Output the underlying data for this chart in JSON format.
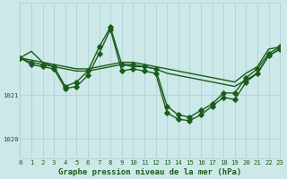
{
  "xlabel": "Graphe pression niveau de la mer (hPa)",
  "bg_color": "#cce8e8",
  "grid_color": "#aacfcf",
  "line_color": "#1a5c1a",
  "xlim": [
    0,
    23
  ],
  "ylim": [
    1019.55,
    1023.1
  ],
  "yticks": [
    1020,
    1021
  ],
  "xticks": [
    0,
    1,
    2,
    3,
    4,
    5,
    6,
    7,
    8,
    9,
    10,
    11,
    12,
    13,
    14,
    15,
    16,
    17,
    18,
    19,
    20,
    21,
    22,
    23
  ],
  "series": [
    {
      "y": [
        1021.85,
        1022.0,
        1021.75,
        1021.7,
        1021.65,
        1021.6,
        1021.6,
        1021.65,
        1021.7,
        1021.75,
        1021.75,
        1021.7,
        1021.65,
        1021.6,
        1021.55,
        1021.5,
        1021.45,
        1021.4,
        1021.35,
        1021.3,
        1021.5,
        1021.65,
        1022.05,
        1022.1
      ],
      "marker": false,
      "lw": 1.0
    },
    {
      "y": [
        1021.85,
        1021.75,
        1021.7,
        1021.65,
        1021.2,
        1021.3,
        1021.55,
        1022.1,
        1022.55,
        1021.7,
        1021.7,
        1021.65,
        1021.6,
        1020.75,
        1020.55,
        1020.5,
        1020.65,
        1020.8,
        1021.05,
        1021.05,
        1021.4,
        1021.6,
        1021.95,
        1022.1
      ],
      "marker": true,
      "lw": 1.0
    },
    {
      "y": [
        1021.85,
        1021.7,
        1021.65,
        1021.6,
        1021.15,
        1021.2,
        1021.45,
        1021.95,
        1022.5,
        1021.55,
        1021.6,
        1021.55,
        1021.5,
        1020.6,
        1020.45,
        1020.42,
        1020.55,
        1020.75,
        1020.95,
        1020.9,
        1021.3,
        1021.5,
        1021.9,
        1022.05
      ],
      "marker": true,
      "lw": 1.0
    },
    {
      "y": [
        1021.85,
        1021.8,
        1021.75,
        1021.65,
        1021.6,
        1021.55,
        1021.55,
        1021.6,
        1021.65,
        1021.7,
        1021.65,
        1021.65,
        1021.6,
        1021.5,
        1021.45,
        1021.4,
        1021.35,
        1021.3,
        1021.25,
        1021.2,
        1021.35,
        1021.5,
        1021.9,
        1022.05
      ],
      "marker": false,
      "lw": 1.0
    }
  ],
  "marker_style": "D",
  "markersize": 2.8,
  "tick_fontsize": 5.2,
  "xlabel_fontsize": 6.5
}
